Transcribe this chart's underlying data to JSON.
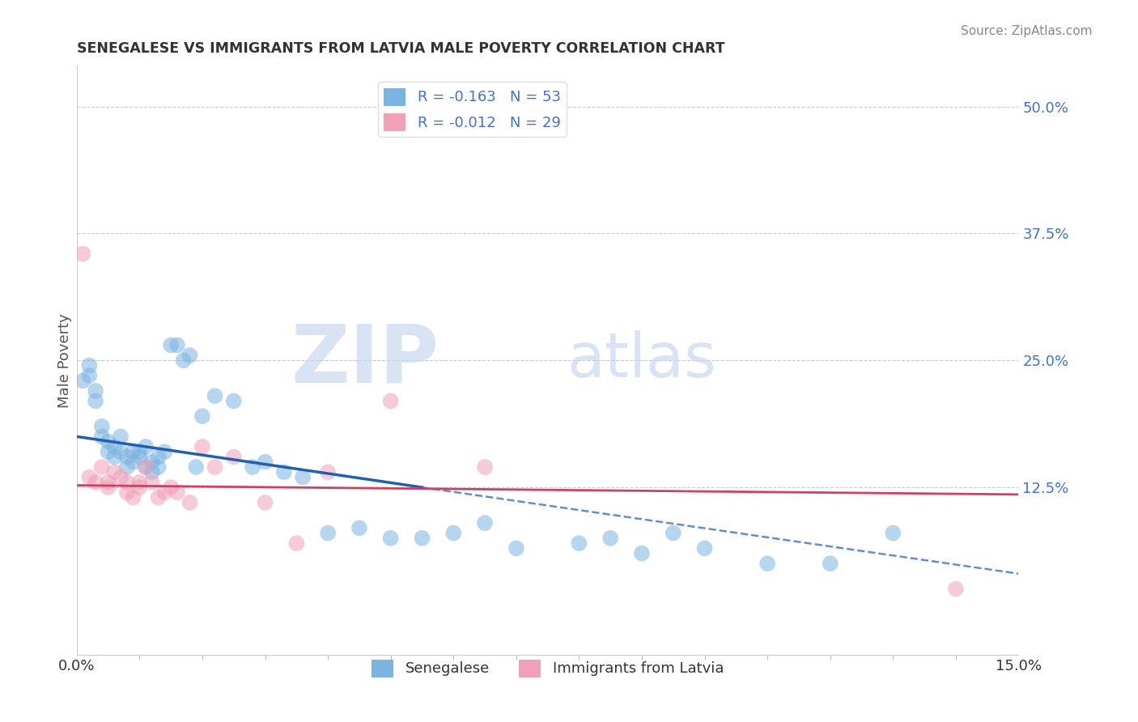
{
  "title": "SENEGALESE VS IMMIGRANTS FROM LATVIA MALE POVERTY CORRELATION CHART",
  "source": "Source: ZipAtlas.com",
  "ylabel": "Male Poverty",
  "xlim": [
    0.0,
    0.15
  ],
  "ylim": [
    -0.04,
    0.54
  ],
  "right_ytick_labels": [
    "50.0%",
    "37.5%",
    "25.0%",
    "12.5%"
  ],
  "right_ytick_positions": [
    0.5,
    0.375,
    0.25,
    0.125
  ],
  "series1_label": "Senegalese",
  "series1_R": -0.163,
  "series1_N": 53,
  "series1_color": "#7ab4e0",
  "series1_trendline_color": "#2060b0",
  "series2_label": "Immigrants from Latvia",
  "series2_R": -0.012,
  "series2_N": 29,
  "series2_color": "#f0a0b8",
  "series2_trendline_color": "#d04060",
  "watermark_zip": "ZIP",
  "watermark_atlas": "atlas",
  "background_color": "#ffffff",
  "grid_color": "#cccccc",
  "sen_x": [
    0.001,
    0.002,
    0.002,
    0.003,
    0.003,
    0.004,
    0.004,
    0.005,
    0.005,
    0.006,
    0.006,
    0.007,
    0.007,
    0.008,
    0.008,
    0.009,
    0.009,
    0.01,
    0.01,
    0.011,
    0.011,
    0.012,
    0.012,
    0.013,
    0.013,
    0.014,
    0.015,
    0.016,
    0.017,
    0.018,
    0.019,
    0.02,
    0.022,
    0.025,
    0.028,
    0.03,
    0.033,
    0.036,
    0.04,
    0.045,
    0.05,
    0.055,
    0.06,
    0.065,
    0.07,
    0.08,
    0.085,
    0.09,
    0.095,
    0.1,
    0.11,
    0.12,
    0.13
  ],
  "sen_y": [
    0.23,
    0.245,
    0.235,
    0.22,
    0.21,
    0.185,
    0.175,
    0.17,
    0.16,
    0.165,
    0.155,
    0.175,
    0.16,
    0.155,
    0.145,
    0.16,
    0.15,
    0.16,
    0.155,
    0.145,
    0.165,
    0.15,
    0.14,
    0.155,
    0.145,
    0.16,
    0.265,
    0.265,
    0.25,
    0.255,
    0.145,
    0.195,
    0.215,
    0.21,
    0.145,
    0.15,
    0.14,
    0.135,
    0.08,
    0.085,
    0.075,
    0.075,
    0.08,
    0.09,
    0.065,
    0.07,
    0.075,
    0.06,
    0.08,
    0.065,
    0.05,
    0.05,
    0.08
  ],
  "lat_x": [
    0.001,
    0.002,
    0.003,
    0.004,
    0.005,
    0.005,
    0.006,
    0.007,
    0.008,
    0.008,
    0.009,
    0.01,
    0.01,
    0.011,
    0.012,
    0.013,
    0.014,
    0.015,
    0.016,
    0.018,
    0.02,
    0.022,
    0.025,
    0.03,
    0.035,
    0.04,
    0.05,
    0.065,
    0.14
  ],
  "lat_y": [
    0.355,
    0.135,
    0.13,
    0.145,
    0.13,
    0.125,
    0.14,
    0.135,
    0.13,
    0.12,
    0.115,
    0.125,
    0.13,
    0.145,
    0.13,
    0.115,
    0.12,
    0.125,
    0.12,
    0.11,
    0.165,
    0.145,
    0.155,
    0.11,
    0.07,
    0.14,
    0.21,
    0.145,
    0.025
  ],
  "trendline1_x0": 0.0,
  "trendline1_y0": 0.175,
  "trendline1_x1": 0.055,
  "trendline1_y1": 0.125,
  "trendline1_dash_x0": 0.055,
  "trendline1_dash_y0": 0.125,
  "trendline1_dash_x1": 0.15,
  "trendline1_dash_y1": 0.04,
  "trendline2_x0": 0.0,
  "trendline2_y0": 0.127,
  "trendline2_x1": 0.15,
  "trendline2_y1": 0.118
}
